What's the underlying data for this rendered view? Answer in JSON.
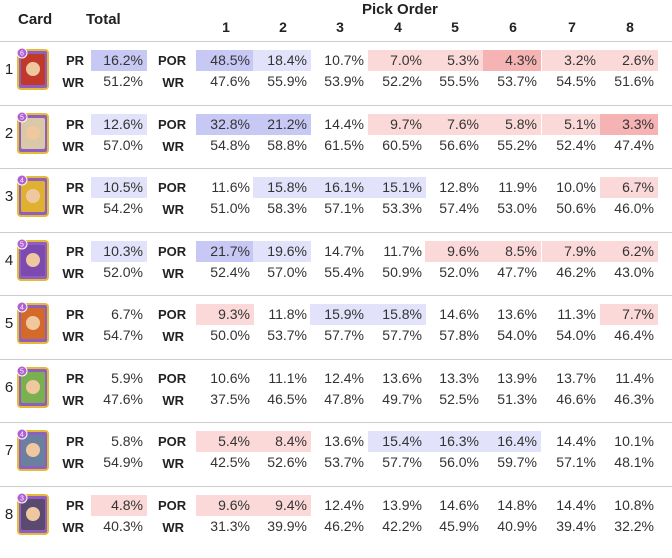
{
  "header": {
    "card": "Card",
    "total": "Total",
    "pick_order": "Pick Order",
    "columns": [
      "1",
      "2",
      "3",
      "4",
      "5",
      "6",
      "7",
      "8"
    ]
  },
  "labels": {
    "pr": "PR",
    "wr": "WR",
    "por": "POR"
  },
  "colors": {
    "high": "#c8c8f5",
    "mid_high": "#e2e2fa",
    "low": "#fbd9d9",
    "lowest": "#f5b3b3",
    "separator": "#cccccc"
  },
  "chart_data": {
    "type": "table",
    "title": "Pick Order",
    "rows": [
      {
        "num": "1",
        "level": "6",
        "pr": "16.2%",
        "wr": "51.2%",
        "pr_shade": "high",
        "por": [
          "48.5%",
          "18.4%",
          "10.7%",
          "7.0%",
          "5.3%",
          "4.3%",
          "3.2%",
          "2.6%"
        ],
        "por_shade": [
          "high",
          "mid_high",
          "",
          "low",
          "low",
          "lowest",
          "low",
          "low"
        ],
        "wr_por": [
          "47.6%",
          "55.9%",
          "53.9%",
          "52.2%",
          "55.5%",
          "53.7%",
          "54.5%",
          "51.6%"
        ]
      },
      {
        "num": "2",
        "level": "5",
        "pr": "12.6%",
        "wr": "57.0%",
        "pr_shade": "mid_high",
        "por": [
          "32.8%",
          "21.2%",
          "14.4%",
          "9.7%",
          "7.6%",
          "5.8%",
          "5.1%",
          "3.3%"
        ],
        "por_shade": [
          "high",
          "high",
          "",
          "low",
          "low",
          "low",
          "low",
          "lowest"
        ],
        "wr_por": [
          "54.8%",
          "58.8%",
          "61.5%",
          "60.5%",
          "56.6%",
          "55.2%",
          "52.4%",
          "47.4%"
        ]
      },
      {
        "num": "3",
        "level": "4",
        "pr": "10.5%",
        "wr": "54.2%",
        "pr_shade": "mid_high",
        "por": [
          "11.6%",
          "15.8%",
          "16.1%",
          "15.1%",
          "12.8%",
          "11.9%",
          "10.0%",
          "6.7%"
        ],
        "por_shade": [
          "",
          "mid_high",
          "mid_high",
          "mid_high",
          "",
          "",
          "",
          "low"
        ],
        "wr_por": [
          "51.0%",
          "58.3%",
          "57.1%",
          "53.3%",
          "57.4%",
          "53.0%",
          "50.6%",
          "46.0%"
        ]
      },
      {
        "num": "4",
        "level": "5",
        "pr": "10.3%",
        "wr": "52.0%",
        "pr_shade": "mid_high",
        "por": [
          "21.7%",
          "19.6%",
          "14.7%",
          "11.7%",
          "9.6%",
          "8.5%",
          "7.9%",
          "6.2%"
        ],
        "por_shade": [
          "high",
          "mid_high",
          "",
          "",
          "low",
          "low",
          "low",
          "low"
        ],
        "wr_por": [
          "52.4%",
          "57.0%",
          "55.4%",
          "50.9%",
          "52.0%",
          "47.7%",
          "46.2%",
          "43.0%"
        ]
      },
      {
        "num": "5",
        "level": "4",
        "pr": "6.7%",
        "wr": "54.7%",
        "pr_shade": "",
        "por": [
          "9.3%",
          "11.8%",
          "15.9%",
          "15.8%",
          "14.6%",
          "13.6%",
          "11.3%",
          "7.7%"
        ],
        "por_shade": [
          "low",
          "",
          "mid_high",
          "mid_high",
          "",
          "",
          "",
          "low"
        ],
        "wr_por": [
          "50.0%",
          "53.7%",
          "57.7%",
          "57.7%",
          "57.8%",
          "54.0%",
          "54.0%",
          "46.4%"
        ]
      },
      {
        "num": "6",
        "level": "5",
        "pr": "5.9%",
        "wr": "47.6%",
        "pr_shade": "",
        "por": [
          "10.6%",
          "11.1%",
          "12.4%",
          "13.6%",
          "13.3%",
          "13.9%",
          "13.7%",
          "11.4%"
        ],
        "por_shade": [
          "",
          "",
          "",
          "",
          "",
          "",
          "",
          ""
        ],
        "wr_por": [
          "37.5%",
          "46.5%",
          "47.8%",
          "49.7%",
          "52.5%",
          "51.3%",
          "46.6%",
          "46.3%"
        ]
      },
      {
        "num": "7",
        "level": "4",
        "pr": "5.8%",
        "wr": "54.9%",
        "pr_shade": "",
        "por": [
          "5.4%",
          "8.4%",
          "13.6%",
          "15.4%",
          "16.3%",
          "16.4%",
          "14.4%",
          "10.1%"
        ],
        "por_shade": [
          "low",
          "low",
          "",
          "mid_high",
          "mid_high",
          "mid_high",
          "",
          ""
        ],
        "wr_por": [
          "42.5%",
          "52.6%",
          "53.7%",
          "57.7%",
          "56.0%",
          "59.7%",
          "57.1%",
          "48.1%"
        ]
      },
      {
        "num": "8",
        "level": "3",
        "pr": "4.8%",
        "wr": "40.3%",
        "pr_shade": "low",
        "por": [
          "9.6%",
          "9.4%",
          "12.4%",
          "13.9%",
          "14.6%",
          "14.8%",
          "14.4%",
          "10.8%"
        ],
        "por_shade": [
          "low",
          "low",
          "",
          "",
          "",
          "",
          "",
          ""
        ],
        "wr_por": [
          "31.3%",
          "39.9%",
          "46.2%",
          "42.2%",
          "45.9%",
          "40.9%",
          "39.4%",
          "32.2%"
        ]
      }
    ]
  }
}
